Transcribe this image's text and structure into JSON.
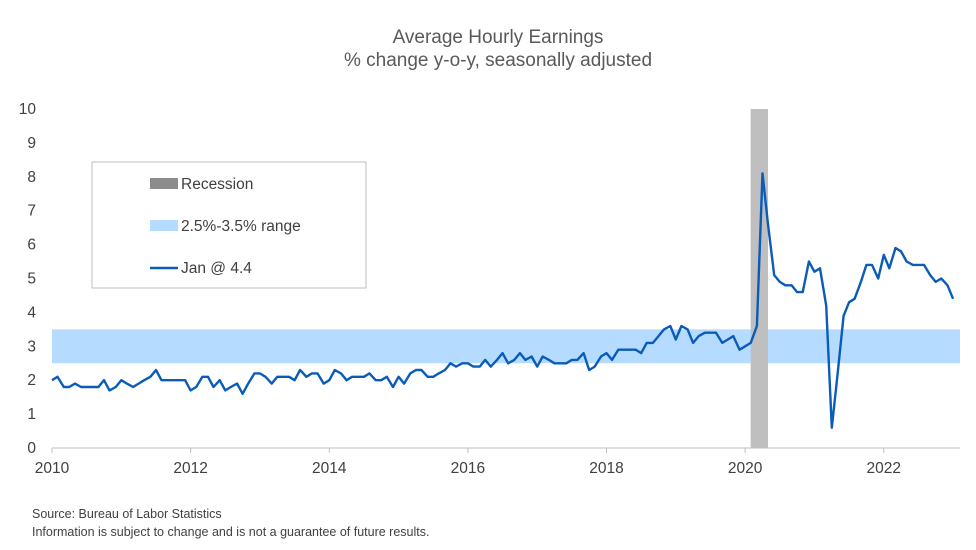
{
  "chart_data": {
    "type": "line",
    "title": "Average Hourly Earnings",
    "subtitle": "% change y-o-y, seasonally adjusted",
    "xlabel": "",
    "ylabel": "",
    "xlim": [
      2010,
      2023.1
    ],
    "ylim": [
      0,
      10
    ],
    "x_ticks": [
      "2010",
      "2012",
      "2014",
      "2016",
      "2018",
      "2020",
      "2022"
    ],
    "y_ticks": [
      "0",
      "1",
      "2",
      "3",
      "4",
      "5",
      "6",
      "7",
      "8",
      "9",
      "10"
    ],
    "grid": false,
    "legend_position": "upper-left",
    "legend": {
      "recession_label": "Recession",
      "range_label": "2.5%-3.5% range",
      "series_label": "Jan @ 4.4"
    },
    "recession": {
      "x_start": 2020.08,
      "x_end": 2020.33
    },
    "band": {
      "y_low": 2.5,
      "y_high": 3.5
    },
    "colors": {
      "line": "#0a5cb8",
      "band": "#b5dcff",
      "recession": "#bfbfbf",
      "legend_recession": "#8c8c8c"
    },
    "series": [
      {
        "name": "Jan @ 4.4",
        "points": [
          [
            2010.0,
            2.0
          ],
          [
            2010.08,
            2.1
          ],
          [
            2010.17,
            1.8
          ],
          [
            2010.25,
            1.8
          ],
          [
            2010.33,
            1.9
          ],
          [
            2010.42,
            1.8
          ],
          [
            2010.5,
            1.8
          ],
          [
            2010.58,
            1.8
          ],
          [
            2010.67,
            1.8
          ],
          [
            2010.75,
            2.0
          ],
          [
            2010.83,
            1.7
          ],
          [
            2010.92,
            1.8
          ],
          [
            2011.0,
            2.0
          ],
          [
            2011.08,
            1.9
          ],
          [
            2011.17,
            1.8
          ],
          [
            2011.25,
            1.9
          ],
          [
            2011.33,
            2.0
          ],
          [
            2011.42,
            2.1
          ],
          [
            2011.5,
            2.3
          ],
          [
            2011.58,
            2.0
          ],
          [
            2011.67,
            2.0
          ],
          [
            2011.75,
            2.0
          ],
          [
            2011.83,
            2.0
          ],
          [
            2011.92,
            2.0
          ],
          [
            2012.0,
            1.7
          ],
          [
            2012.08,
            1.8
          ],
          [
            2012.17,
            2.1
          ],
          [
            2012.25,
            2.1
          ],
          [
            2012.33,
            1.8
          ],
          [
            2012.42,
            2.0
          ],
          [
            2012.5,
            1.7
          ],
          [
            2012.58,
            1.8
          ],
          [
            2012.67,
            1.9
          ],
          [
            2012.75,
            1.6
          ],
          [
            2012.83,
            1.9
          ],
          [
            2012.92,
            2.2
          ],
          [
            2013.0,
            2.2
          ],
          [
            2013.08,
            2.1
          ],
          [
            2013.17,
            1.9
          ],
          [
            2013.25,
            2.1
          ],
          [
            2013.33,
            2.1
          ],
          [
            2013.42,
            2.1
          ],
          [
            2013.5,
            2.0
          ],
          [
            2013.58,
            2.3
          ],
          [
            2013.67,
            2.1
          ],
          [
            2013.75,
            2.2
          ],
          [
            2013.83,
            2.2
          ],
          [
            2013.92,
            1.9
          ],
          [
            2014.0,
            2.0
          ],
          [
            2014.08,
            2.3
          ],
          [
            2014.17,
            2.2
          ],
          [
            2014.25,
            2.0
          ],
          [
            2014.33,
            2.1
          ],
          [
            2014.42,
            2.1
          ],
          [
            2014.5,
            2.1
          ],
          [
            2014.58,
            2.2
          ],
          [
            2014.67,
            2.0
          ],
          [
            2014.75,
            2.0
          ],
          [
            2014.83,
            2.1
          ],
          [
            2014.92,
            1.8
          ],
          [
            2015.0,
            2.1
          ],
          [
            2015.08,
            1.9
          ],
          [
            2015.17,
            2.2
          ],
          [
            2015.25,
            2.3
          ],
          [
            2015.33,
            2.3
          ],
          [
            2015.42,
            2.1
          ],
          [
            2015.5,
            2.1
          ],
          [
            2015.58,
            2.2
          ],
          [
            2015.67,
            2.3
          ],
          [
            2015.75,
            2.5
          ],
          [
            2015.83,
            2.4
          ],
          [
            2015.92,
            2.5
          ],
          [
            2016.0,
            2.5
          ],
          [
            2016.08,
            2.4
          ],
          [
            2016.17,
            2.4
          ],
          [
            2016.25,
            2.6
          ],
          [
            2016.33,
            2.4
          ],
          [
            2016.42,
            2.6
          ],
          [
            2016.5,
            2.8
          ],
          [
            2016.58,
            2.5
          ],
          [
            2016.67,
            2.6
          ],
          [
            2016.75,
            2.8
          ],
          [
            2016.83,
            2.6
          ],
          [
            2016.92,
            2.7
          ],
          [
            2017.0,
            2.4
          ],
          [
            2017.08,
            2.7
          ],
          [
            2017.17,
            2.6
          ],
          [
            2017.25,
            2.5
          ],
          [
            2017.33,
            2.5
          ],
          [
            2017.42,
            2.5
          ],
          [
            2017.5,
            2.6
          ],
          [
            2017.58,
            2.6
          ],
          [
            2017.67,
            2.8
          ],
          [
            2017.75,
            2.3
          ],
          [
            2017.83,
            2.4
          ],
          [
            2017.92,
            2.7
          ],
          [
            2018.0,
            2.8
          ],
          [
            2018.08,
            2.6
          ],
          [
            2018.17,
            2.9
          ],
          [
            2018.25,
            2.9
          ],
          [
            2018.33,
            2.9
          ],
          [
            2018.42,
            2.9
          ],
          [
            2018.5,
            2.8
          ],
          [
            2018.58,
            3.1
          ],
          [
            2018.67,
            3.1
          ],
          [
            2018.75,
            3.3
          ],
          [
            2018.83,
            3.5
          ],
          [
            2018.92,
            3.6
          ],
          [
            2019.0,
            3.2
          ],
          [
            2019.08,
            3.6
          ],
          [
            2019.17,
            3.5
          ],
          [
            2019.25,
            3.1
          ],
          [
            2019.33,
            3.3
          ],
          [
            2019.42,
            3.4
          ],
          [
            2019.5,
            3.4
          ],
          [
            2019.58,
            3.4
          ],
          [
            2019.67,
            3.1
          ],
          [
            2019.75,
            3.2
          ],
          [
            2019.83,
            3.3
          ],
          [
            2019.92,
            2.9
          ],
          [
            2020.0,
            3.0
          ],
          [
            2020.08,
            3.1
          ],
          [
            2020.17,
            3.6
          ],
          [
            2020.25,
            8.1
          ],
          [
            2020.33,
            6.6
          ],
          [
            2020.42,
            5.1
          ],
          [
            2020.5,
            4.9
          ],
          [
            2020.58,
            4.8
          ],
          [
            2020.67,
            4.8
          ],
          [
            2020.75,
            4.6
          ],
          [
            2020.83,
            4.6
          ],
          [
            2020.92,
            5.5
          ],
          [
            2021.0,
            5.2
          ],
          [
            2021.08,
            5.3
          ],
          [
            2021.17,
            4.2
          ],
          [
            2021.25,
            0.6
          ],
          [
            2021.33,
            2.1
          ],
          [
            2021.42,
            3.9
          ],
          [
            2021.5,
            4.3
          ],
          [
            2021.58,
            4.4
          ],
          [
            2021.67,
            4.9
          ],
          [
            2021.75,
            5.4
          ],
          [
            2021.83,
            5.4
          ],
          [
            2021.92,
            5.0
          ],
          [
            2022.0,
            5.7
          ],
          [
            2022.08,
            5.3
          ],
          [
            2022.17,
            5.9
          ],
          [
            2022.25,
            5.8
          ],
          [
            2022.33,
            5.5
          ],
          [
            2022.42,
            5.4
          ],
          [
            2022.5,
            5.4
          ],
          [
            2022.58,
            5.4
          ],
          [
            2022.67,
            5.1
          ],
          [
            2022.75,
            4.9
          ],
          [
            2022.83,
            5.0
          ],
          [
            2022.92,
            4.8
          ],
          [
            2023.0,
            4.4
          ]
        ]
      }
    ]
  },
  "footer": {
    "source": "Source: Bureau of Labor Statistics",
    "disclaimer": "Information is subject to change and is not a guarantee of future results."
  }
}
